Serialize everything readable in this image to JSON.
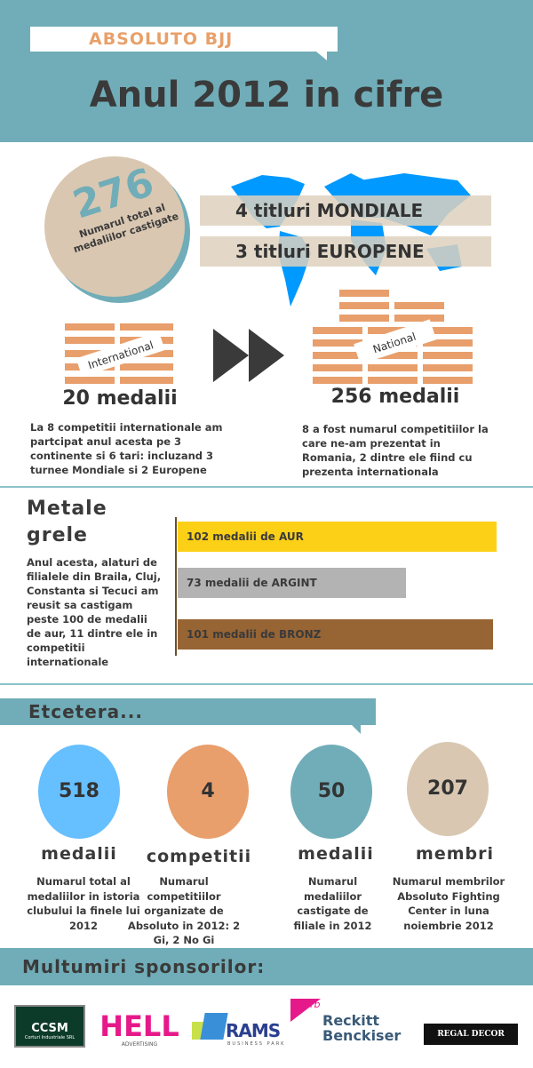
{
  "header": {
    "brand": "ABSOLUTO BJJ",
    "title": "Anul 2012 in cifre"
  },
  "total": {
    "value": "276",
    "caption": "Numarul total al medaliilor castigate"
  },
  "titles": {
    "world": "4 titluri MONDIALE",
    "europe": "3 titluri EUROPENE"
  },
  "international": {
    "tag": "International",
    "medals": "20 medalii",
    "text": "La 8 competitii internationale am partcipat anul acesta pe 3 continente si 6 tari: incluzand 3 turnee Mondiale si 2 Europene"
  },
  "national": {
    "tag": "National",
    "medals": "256 medalii",
    "text": "8 a fost numarul competitiilor la care ne-am prezentat in Romania, 2 dintre ele fiind cu prezenta internationala"
  },
  "metals": {
    "title_line1": "Metale",
    "title_line2": "grele",
    "text": "Anul acesta, alaturi de filialele din Braila, Cluj, Constanta si Tecuci am reusit sa castigam peste 100 de medalii de aur, 11 dintre ele in competitii internationale"
  },
  "chart_data": {
    "type": "bar",
    "orientation": "horizontal",
    "categories": [
      "AUR",
      "ARGINT",
      "BRONZ"
    ],
    "values": [
      102,
      73,
      101
    ],
    "labels": [
      "102 medalii de AUR",
      "73 medalii de ARGINT",
      "101 medalii de BRONZ"
    ],
    "colors": [
      "#fdd018",
      "#b3b3b3",
      "#976434"
    ],
    "xlim": [
      0,
      102
    ]
  },
  "etc": {
    "title": "Etcetera...",
    "stats": [
      {
        "value": "518",
        "label": "medalii",
        "desc": "Numarul total al medaliilor in istoria clubului la finele lui 2012",
        "color": "#66bfff"
      },
      {
        "value": "4",
        "label": "competitii",
        "desc": "Numarul competitiilor organizate de Absoluto in 2012: 2 Gi, 2 No Gi",
        "color": "#e89f6c"
      },
      {
        "value": "50",
        "label": "medalii",
        "desc": "Numarul medaliilor castigate de filiale in 2012",
        "color": "#70adb8"
      },
      {
        "value": "207",
        "label": "membri",
        "desc": "Numarul membrilor Absoluto Fighting Center in luna noiembrie 2012",
        "color": "#d9c7b1"
      }
    ]
  },
  "sponsors": {
    "title": "Multumiri sponsorilor:",
    "logos": [
      {
        "name": "CCSM",
        "sub": "Corturi Industriale SRL"
      },
      {
        "name": "HELL",
        "sub": "ADVERTISING"
      },
      {
        "name": "RAMS",
        "sub": "BUSINESS PARK"
      },
      {
        "name": "Reckitt Benckiser",
        "sub": "rb"
      },
      {
        "name": "REGAL DECOR",
        "sub": ""
      }
    ]
  },
  "colors": {
    "teal": "#70adb8",
    "orange": "#e89f6c",
    "tan": "#d9c7b1",
    "map_blue": "#0099ff"
  }
}
